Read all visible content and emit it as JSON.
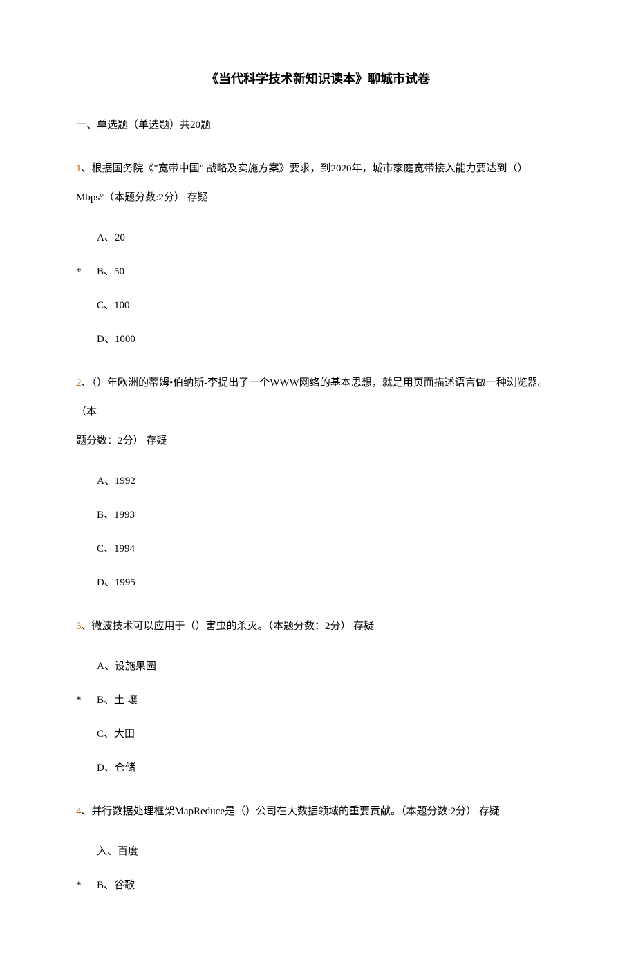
{
  "title": "《当代科学技术新知识读本》聊城市试卷",
  "section_header": "一、单选题（单选题）共20题",
  "questions": [
    {
      "num": "1",
      "text_before": "、根据国务院《\"宽带中国\" 战略及实施方案》要求，到2020年，城市家庭宽带接入能力要达到（）",
      "text_after": "Mbps°（本题分数:2分）  存疑",
      "options": [
        {
          "label": "A、20",
          "correct": false
        },
        {
          "label": "B、50",
          "correct": true
        },
        {
          "label": "C、100",
          "correct": false
        },
        {
          "label": "D、1000",
          "correct": false
        }
      ]
    },
    {
      "num": "2",
      "text_before": "、（）年欧洲的蒂姆•伯纳斯-李提出了一个WWW网络的基本思想，就是用页面描述语言做一种浏览器。（本",
      "text_after": "题分数：2分）  存疑",
      "options": [
        {
          "label": "A、1992",
          "correct": false
        },
        {
          "label": "B、1993",
          "correct": false
        },
        {
          "label": "C、1994",
          "correct": false
        },
        {
          "label": "D、1995",
          "correct": false
        }
      ]
    },
    {
      "num": "3",
      "text_before": "、微波技术可以应用于（）害虫的杀灭。（本题分数：2分）  存疑",
      "text_after": "",
      "options": [
        {
          "label": "A、设施果园",
          "correct": false
        },
        {
          "label": "B、土 壤",
          "correct": true,
          "indent": true
        },
        {
          "label": "C、大田",
          "correct": false
        },
        {
          "label": "D、仓储",
          "correct": false
        }
      ]
    },
    {
      "num": "4",
      "text_before": "、并行数据处理框架MapReduce是（）公司在大数据领域的重要贡献。（本题分数:2分）  存疑",
      "text_after": "",
      "options": [
        {
          "label": "入、百度",
          "correct": false
        },
        {
          "label": "B、谷歌",
          "correct": true,
          "indent": true
        }
      ]
    }
  ]
}
